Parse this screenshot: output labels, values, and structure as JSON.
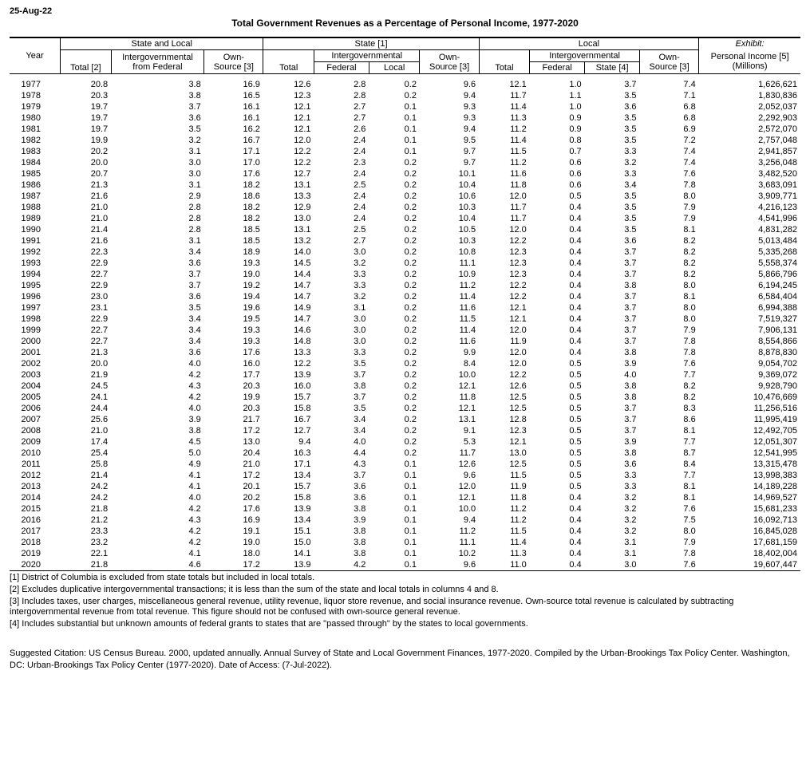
{
  "date_stamp": "25-Aug-22",
  "title": "Total Government Revenues as a Percentage of Personal Income, 1977-2020",
  "headers": {
    "year": "Year",
    "group_state_local": "State and Local",
    "group_state": "State [1]",
    "group_local": "Local",
    "group_exhibit": "Exhibit:",
    "sl_total": "Total [2]",
    "sl_ig_federal": "Intergovernmental from Federal",
    "sl_own_source": "Own-Source [3]",
    "s_total": "Total",
    "s_ig": "Intergovernmental",
    "s_ig_federal": "Federal",
    "s_ig_local": "Local",
    "s_own_source": "Own-Source [3]",
    "l_total": "Total",
    "l_ig": "Intergovernmental",
    "l_ig_federal": "Federal",
    "l_ig_state": "State [4]",
    "l_own_source": "Own-Source [3]",
    "exhibit_pi": "Personal Income [5] (Millions)"
  },
  "rows": [
    {
      "year": "1977",
      "sl_total": "20.8",
      "sl_ig": "3.8",
      "sl_own": "16.9",
      "s_total": "12.6",
      "s_fed": "2.8",
      "s_loc": "0.2",
      "s_own": "9.6",
      "l_total": "12.1",
      "l_fed": "1.0",
      "l_state": "3.7",
      "l_own": "7.4",
      "pi": "1,626,621"
    },
    {
      "year": "1978",
      "sl_total": "20.3",
      "sl_ig": "3.8",
      "sl_own": "16.5",
      "s_total": "12.3",
      "s_fed": "2.8",
      "s_loc": "0.2",
      "s_own": "9.4",
      "l_total": "11.7",
      "l_fed": "1.1",
      "l_state": "3.5",
      "l_own": "7.1",
      "pi": "1,830,836"
    },
    {
      "year": "1979",
      "sl_total": "19.7",
      "sl_ig": "3.7",
      "sl_own": "16.1",
      "s_total": "12.1",
      "s_fed": "2.7",
      "s_loc": "0.1",
      "s_own": "9.3",
      "l_total": "11.4",
      "l_fed": "1.0",
      "l_state": "3.6",
      "l_own": "6.8",
      "pi": "2,052,037"
    },
    {
      "year": "1980",
      "sl_total": "19.7",
      "sl_ig": "3.6",
      "sl_own": "16.1",
      "s_total": "12.1",
      "s_fed": "2.7",
      "s_loc": "0.1",
      "s_own": "9.3",
      "l_total": "11.3",
      "l_fed": "0.9",
      "l_state": "3.5",
      "l_own": "6.8",
      "pi": "2,292,903"
    },
    {
      "year": "1981",
      "sl_total": "19.7",
      "sl_ig": "3.5",
      "sl_own": "16.2",
      "s_total": "12.1",
      "s_fed": "2.6",
      "s_loc": "0.1",
      "s_own": "9.4",
      "l_total": "11.2",
      "l_fed": "0.9",
      "l_state": "3.5",
      "l_own": "6.9",
      "pi": "2,572,070"
    },
    {
      "year": "1982",
      "sl_total": "19.9",
      "sl_ig": "3.2",
      "sl_own": "16.7",
      "s_total": "12.0",
      "s_fed": "2.4",
      "s_loc": "0.1",
      "s_own": "9.5",
      "l_total": "11.4",
      "l_fed": "0.8",
      "l_state": "3.5",
      "l_own": "7.2",
      "pi": "2,757,048"
    },
    {
      "year": "1983",
      "sl_total": "20.2",
      "sl_ig": "3.1",
      "sl_own": "17.1",
      "s_total": "12.2",
      "s_fed": "2.4",
      "s_loc": "0.1",
      "s_own": "9.7",
      "l_total": "11.5",
      "l_fed": "0.7",
      "l_state": "3.3",
      "l_own": "7.4",
      "pi": "2,941,857"
    },
    {
      "year": "1984",
      "sl_total": "20.0",
      "sl_ig": "3.0",
      "sl_own": "17.0",
      "s_total": "12.2",
      "s_fed": "2.3",
      "s_loc": "0.2",
      "s_own": "9.7",
      "l_total": "11.2",
      "l_fed": "0.6",
      "l_state": "3.2",
      "l_own": "7.4",
      "pi": "3,256,048"
    },
    {
      "year": "1985",
      "sl_total": "20.7",
      "sl_ig": "3.0",
      "sl_own": "17.6",
      "s_total": "12.7",
      "s_fed": "2.4",
      "s_loc": "0.2",
      "s_own": "10.1",
      "l_total": "11.6",
      "l_fed": "0.6",
      "l_state": "3.3",
      "l_own": "7.6",
      "pi": "3,482,520"
    },
    {
      "year": "1986",
      "sl_total": "21.3",
      "sl_ig": "3.1",
      "sl_own": "18.2",
      "s_total": "13.1",
      "s_fed": "2.5",
      "s_loc": "0.2",
      "s_own": "10.4",
      "l_total": "11.8",
      "l_fed": "0.6",
      "l_state": "3.4",
      "l_own": "7.8",
      "pi": "3,683,091"
    },
    {
      "year": "1987",
      "sl_total": "21.6",
      "sl_ig": "2.9",
      "sl_own": "18.6",
      "s_total": "13.3",
      "s_fed": "2.4",
      "s_loc": "0.2",
      "s_own": "10.6",
      "l_total": "12.0",
      "l_fed": "0.5",
      "l_state": "3.5",
      "l_own": "8.0",
      "pi": "3,909,771"
    },
    {
      "year": "1988",
      "sl_total": "21.0",
      "sl_ig": "2.8",
      "sl_own": "18.2",
      "s_total": "12.9",
      "s_fed": "2.4",
      "s_loc": "0.2",
      "s_own": "10.3",
      "l_total": "11.7",
      "l_fed": "0.4",
      "l_state": "3.5",
      "l_own": "7.9",
      "pi": "4,216,123"
    },
    {
      "year": "1989",
      "sl_total": "21.0",
      "sl_ig": "2.8",
      "sl_own": "18.2",
      "s_total": "13.0",
      "s_fed": "2.4",
      "s_loc": "0.2",
      "s_own": "10.4",
      "l_total": "11.7",
      "l_fed": "0.4",
      "l_state": "3.5",
      "l_own": "7.9",
      "pi": "4,541,996"
    },
    {
      "year": "1990",
      "sl_total": "21.4",
      "sl_ig": "2.8",
      "sl_own": "18.5",
      "s_total": "13.1",
      "s_fed": "2.5",
      "s_loc": "0.2",
      "s_own": "10.5",
      "l_total": "12.0",
      "l_fed": "0.4",
      "l_state": "3.5",
      "l_own": "8.1",
      "pi": "4,831,282"
    },
    {
      "year": "1991",
      "sl_total": "21.6",
      "sl_ig": "3.1",
      "sl_own": "18.5",
      "s_total": "13.2",
      "s_fed": "2.7",
      "s_loc": "0.2",
      "s_own": "10.3",
      "l_total": "12.2",
      "l_fed": "0.4",
      "l_state": "3.6",
      "l_own": "8.2",
      "pi": "5,013,484"
    },
    {
      "year": "1992",
      "sl_total": "22.3",
      "sl_ig": "3.4",
      "sl_own": "18.9",
      "s_total": "14.0",
      "s_fed": "3.0",
      "s_loc": "0.2",
      "s_own": "10.8",
      "l_total": "12.3",
      "l_fed": "0.4",
      "l_state": "3.7",
      "l_own": "8.2",
      "pi": "5,335,268"
    },
    {
      "year": "1993",
      "sl_total": "22.9",
      "sl_ig": "3.6",
      "sl_own": "19.3",
      "s_total": "14.5",
      "s_fed": "3.2",
      "s_loc": "0.2",
      "s_own": "11.1",
      "l_total": "12.3",
      "l_fed": "0.4",
      "l_state": "3.7",
      "l_own": "8.2",
      "pi": "5,558,374"
    },
    {
      "year": "1994",
      "sl_total": "22.7",
      "sl_ig": "3.7",
      "sl_own": "19.0",
      "s_total": "14.4",
      "s_fed": "3.3",
      "s_loc": "0.2",
      "s_own": "10.9",
      "l_total": "12.3",
      "l_fed": "0.4",
      "l_state": "3.7",
      "l_own": "8.2",
      "pi": "5,866,796"
    },
    {
      "year": "1995",
      "sl_total": "22.9",
      "sl_ig": "3.7",
      "sl_own": "19.2",
      "s_total": "14.7",
      "s_fed": "3.3",
      "s_loc": "0.2",
      "s_own": "11.2",
      "l_total": "12.2",
      "l_fed": "0.4",
      "l_state": "3.8",
      "l_own": "8.0",
      "pi": "6,194,245"
    },
    {
      "year": "1996",
      "sl_total": "23.0",
      "sl_ig": "3.6",
      "sl_own": "19.4",
      "s_total": "14.7",
      "s_fed": "3.2",
      "s_loc": "0.2",
      "s_own": "11.4",
      "l_total": "12.2",
      "l_fed": "0.4",
      "l_state": "3.7",
      "l_own": "8.1",
      "pi": "6,584,404"
    },
    {
      "year": "1997",
      "sl_total": "23.1",
      "sl_ig": "3.5",
      "sl_own": "19.6",
      "s_total": "14.9",
      "s_fed": "3.1",
      "s_loc": "0.2",
      "s_own": "11.6",
      "l_total": "12.1",
      "l_fed": "0.4",
      "l_state": "3.7",
      "l_own": "8.0",
      "pi": "6,994,388"
    },
    {
      "year": "1998",
      "sl_total": "22.9",
      "sl_ig": "3.4",
      "sl_own": "19.5",
      "s_total": "14.7",
      "s_fed": "3.0",
      "s_loc": "0.2",
      "s_own": "11.5",
      "l_total": "12.1",
      "l_fed": "0.4",
      "l_state": "3.7",
      "l_own": "8.0",
      "pi": "7,519,327"
    },
    {
      "year": "1999",
      "sl_total": "22.7",
      "sl_ig": "3.4",
      "sl_own": "19.3",
      "s_total": "14.6",
      "s_fed": "3.0",
      "s_loc": "0.2",
      "s_own": "11.4",
      "l_total": "12.0",
      "l_fed": "0.4",
      "l_state": "3.7",
      "l_own": "7.9",
      "pi": "7,906,131"
    },
    {
      "year": "2000",
      "sl_total": "22.7",
      "sl_ig": "3.4",
      "sl_own": "19.3",
      "s_total": "14.8",
      "s_fed": "3.0",
      "s_loc": "0.2",
      "s_own": "11.6",
      "l_total": "11.9",
      "l_fed": "0.4",
      "l_state": "3.7",
      "l_own": "7.8",
      "pi": "8,554,866"
    },
    {
      "year": "2001",
      "sl_total": "21.3",
      "sl_ig": "3.6",
      "sl_own": "17.6",
      "s_total": "13.3",
      "s_fed": "3.3",
      "s_loc": "0.2",
      "s_own": "9.9",
      "l_total": "12.0",
      "l_fed": "0.4",
      "l_state": "3.8",
      "l_own": "7.8",
      "pi": "8,878,830"
    },
    {
      "year": "2002",
      "sl_total": "20.0",
      "sl_ig": "4.0",
      "sl_own": "16.0",
      "s_total": "12.2",
      "s_fed": "3.5",
      "s_loc": "0.2",
      "s_own": "8.4",
      "l_total": "12.0",
      "l_fed": "0.5",
      "l_state": "3.9",
      "l_own": "7.6",
      "pi": "9,054,702"
    },
    {
      "year": "2003",
      "sl_total": "21.9",
      "sl_ig": "4.2",
      "sl_own": "17.7",
      "s_total": "13.9",
      "s_fed": "3.7",
      "s_loc": "0.2",
      "s_own": "10.0",
      "l_total": "12.2",
      "l_fed": "0.5",
      "l_state": "4.0",
      "l_own": "7.7",
      "pi": "9,369,072"
    },
    {
      "year": "2004",
      "sl_total": "24.5",
      "sl_ig": "4.3",
      "sl_own": "20.3",
      "s_total": "16.0",
      "s_fed": "3.8",
      "s_loc": "0.2",
      "s_own": "12.1",
      "l_total": "12.6",
      "l_fed": "0.5",
      "l_state": "3.8",
      "l_own": "8.2",
      "pi": "9,928,790"
    },
    {
      "year": "2005",
      "sl_total": "24.1",
      "sl_ig": "4.2",
      "sl_own": "19.9",
      "s_total": "15.7",
      "s_fed": "3.7",
      "s_loc": "0.2",
      "s_own": "11.8",
      "l_total": "12.5",
      "l_fed": "0.5",
      "l_state": "3.8",
      "l_own": "8.2",
      "pi": "10,476,669"
    },
    {
      "year": "2006",
      "sl_total": "24.4",
      "sl_ig": "4.0",
      "sl_own": "20.3",
      "s_total": "15.8",
      "s_fed": "3.5",
      "s_loc": "0.2",
      "s_own": "12.1",
      "l_total": "12.5",
      "l_fed": "0.5",
      "l_state": "3.7",
      "l_own": "8.3",
      "pi": "11,256,516"
    },
    {
      "year": "2007",
      "sl_total": "25.6",
      "sl_ig": "3.9",
      "sl_own": "21.7",
      "s_total": "16.7",
      "s_fed": "3.4",
      "s_loc": "0.2",
      "s_own": "13.1",
      "l_total": "12.8",
      "l_fed": "0.5",
      "l_state": "3.7",
      "l_own": "8.6",
      "pi": "11,995,419"
    },
    {
      "year": "2008",
      "sl_total": "21.0",
      "sl_ig": "3.8",
      "sl_own": "17.2",
      "s_total": "12.7",
      "s_fed": "3.4",
      "s_loc": "0.2",
      "s_own": "9.1",
      "l_total": "12.3",
      "l_fed": "0.5",
      "l_state": "3.7",
      "l_own": "8.1",
      "pi": "12,492,705"
    },
    {
      "year": "2009",
      "sl_total": "17.4",
      "sl_ig": "4.5",
      "sl_own": "13.0",
      "s_total": "9.4",
      "s_fed": "4.0",
      "s_loc": "0.2",
      "s_own": "5.3",
      "l_total": "12.1",
      "l_fed": "0.5",
      "l_state": "3.9",
      "l_own": "7.7",
      "pi": "12,051,307"
    },
    {
      "year": "2010",
      "sl_total": "25.4",
      "sl_ig": "5.0",
      "sl_own": "20.4",
      "s_total": "16.3",
      "s_fed": "4.4",
      "s_loc": "0.2",
      "s_own": "11.7",
      "l_total": "13.0",
      "l_fed": "0.5",
      "l_state": "3.8",
      "l_own": "8.7",
      "pi": "12,541,995"
    },
    {
      "year": "2011",
      "sl_total": "25.8",
      "sl_ig": "4.9",
      "sl_own": "21.0",
      "s_total": "17.1",
      "s_fed": "4.3",
      "s_loc": "0.1",
      "s_own": "12.6",
      "l_total": "12.5",
      "l_fed": "0.5",
      "l_state": "3.6",
      "l_own": "8.4",
      "pi": "13,315,478"
    },
    {
      "year": "2012",
      "sl_total": "21.4",
      "sl_ig": "4.1",
      "sl_own": "17.2",
      "s_total": "13.4",
      "s_fed": "3.7",
      "s_loc": "0.1",
      "s_own": "9.6",
      "l_total": "11.5",
      "l_fed": "0.5",
      "l_state": "3.3",
      "l_own": "7.7",
      "pi": "13,998,383"
    },
    {
      "year": "2013",
      "sl_total": "24.2",
      "sl_ig": "4.1",
      "sl_own": "20.1",
      "s_total": "15.7",
      "s_fed": "3.6",
      "s_loc": "0.1",
      "s_own": "12.0",
      "l_total": "11.9",
      "l_fed": "0.5",
      "l_state": "3.3",
      "l_own": "8.1",
      "pi": "14,189,228"
    },
    {
      "year": "2014",
      "sl_total": "24.2",
      "sl_ig": "4.0",
      "sl_own": "20.2",
      "s_total": "15.8",
      "s_fed": "3.6",
      "s_loc": "0.1",
      "s_own": "12.1",
      "l_total": "11.8",
      "l_fed": "0.4",
      "l_state": "3.2",
      "l_own": "8.1",
      "pi": "14,969,527"
    },
    {
      "year": "2015",
      "sl_total": "21.8",
      "sl_ig": "4.2",
      "sl_own": "17.6",
      "s_total": "13.9",
      "s_fed": "3.8",
      "s_loc": "0.1",
      "s_own": "10.0",
      "l_total": "11.2",
      "l_fed": "0.4",
      "l_state": "3.2",
      "l_own": "7.6",
      "pi": "15,681,233"
    },
    {
      "year": "2016",
      "sl_total": "21.2",
      "sl_ig": "4.3",
      "sl_own": "16.9",
      "s_total": "13.4",
      "s_fed": "3.9",
      "s_loc": "0.1",
      "s_own": "9.4",
      "l_total": "11.2",
      "l_fed": "0.4",
      "l_state": "3.2",
      "l_own": "7.5",
      "pi": "16,092,713"
    },
    {
      "year": "2017",
      "sl_total": "23.3",
      "sl_ig": "4.2",
      "sl_own": "19.1",
      "s_total": "15.1",
      "s_fed": "3.8",
      "s_loc": "0.1",
      "s_own": "11.2",
      "l_total": "11.5",
      "l_fed": "0.4",
      "l_state": "3.2",
      "l_own": "8.0",
      "pi": "16,845,028"
    },
    {
      "year": "2018",
      "sl_total": "23.2",
      "sl_ig": "4.2",
      "sl_own": "19.0",
      "s_total": "15.0",
      "s_fed": "3.8",
      "s_loc": "0.1",
      "s_own": "11.1",
      "l_total": "11.4",
      "l_fed": "0.4",
      "l_state": "3.1",
      "l_own": "7.9",
      "pi": "17,681,159"
    },
    {
      "year": "2019",
      "sl_total": "22.1",
      "sl_ig": "4.1",
      "sl_own": "18.0",
      "s_total": "14.1",
      "s_fed": "3.8",
      "s_loc": "0.1",
      "s_own": "10.2",
      "l_total": "11.3",
      "l_fed": "0.4",
      "l_state": "3.1",
      "l_own": "7.8",
      "pi": "18,402,004"
    },
    {
      "year": "2020",
      "sl_total": "21.8",
      "sl_ig": "4.6",
      "sl_own": "17.2",
      "s_total": "13.9",
      "s_fed": "4.2",
      "s_loc": "0.1",
      "s_own": "9.6",
      "l_total": "11.0",
      "l_fed": "0.4",
      "l_state": "3.0",
      "l_own": "7.6",
      "pi": "19,607,447"
    }
  ],
  "footnotes": [
    "[1] District of Columbia is excluded from state totals but included in local totals.",
    "[2] Excludes duplicative intergovernmental transactions; it is less than the sum of the state and local totals in columns 4 and 8.",
    "[3] Includes taxes, user charges, miscellaneous general revenue, utility revenue, liquor store revenue, and social insurance revenue.  Own-source total revenue is calculated by subtracting intergovernmental revenue from total revenue.  This figure should not be confused with own-source general revenue.",
    "[4] Includes substantial but unknown amounts of federal grants to states that are \"passed through\" by the states to local governments."
  ],
  "citation": "Suggested Citation: US Census Bureau. 2000, updated annually. Annual Survey of State and Local Government Finances, 1977-2020. Compiled by the Urban-Brookings Tax Policy Center. Washington, DC: Urban-Brookings Tax Policy Center (1977-2020). Date of Access: (7-Jul-2022)."
}
